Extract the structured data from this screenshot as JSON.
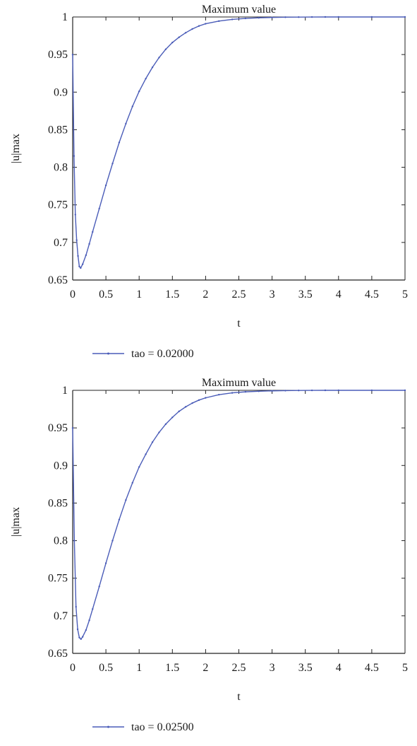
{
  "chart_data": [
    {
      "type": "line",
      "title": "Maximum value",
      "xlabel": "t",
      "ylabel": "|u|max",
      "xlim": [
        0,
        5
      ],
      "ylim": [
        0.65,
        1
      ],
      "xticks": [
        "0",
        "0.5",
        "1",
        "1.5",
        "2",
        "2.5",
        "3",
        "3.5",
        "4",
        "4.5",
        "5"
      ],
      "yticks": [
        "0.65",
        "0.7",
        "0.75",
        "0.8",
        "0.85",
        "0.9",
        "0.95",
        "1"
      ],
      "grid": false,
      "legend_position": "bottom-left",
      "line_color": "#4a5cb8",
      "series": [
        {
          "name": "tao = 0.02000",
          "x": [
            0,
            0.02,
            0.04,
            0.06,
            0.08,
            0.1,
            0.12,
            0.15,
            0.2,
            0.25,
            0.3,
            0.4,
            0.5,
            0.6,
            0.7,
            0.8,
            0.9,
            1.0,
            1.1,
            1.2,
            1.3,
            1.4,
            1.5,
            1.6,
            1.7,
            1.8,
            1.9,
            2.0,
            2.2,
            2.4,
            2.6,
            2.8,
            3.0,
            3.2,
            3.4,
            3.6,
            3.8,
            4.0,
            4.5,
            5.0
          ],
          "y": [
            0.95,
            0.815,
            0.737,
            0.703,
            0.682,
            0.668,
            0.666,
            0.671,
            0.683,
            0.698,
            0.714,
            0.745,
            0.776,
            0.805,
            0.833,
            0.858,
            0.881,
            0.901,
            0.918,
            0.933,
            0.946,
            0.957,
            0.966,
            0.973,
            0.979,
            0.984,
            0.988,
            0.991,
            0.9945,
            0.9968,
            0.9981,
            0.9989,
            0.9994,
            0.9997,
            0.9998,
            0.9999,
            1.0,
            1.0,
            1.0,
            1.0
          ]
        }
      ]
    },
    {
      "type": "line",
      "title": "Maximum value",
      "xlabel": "t",
      "ylabel": "|u|max",
      "xlim": [
        0,
        5
      ],
      "ylim": [
        0.65,
        1
      ],
      "xticks": [
        "0",
        "0.5",
        "1",
        "1.5",
        "2",
        "2.5",
        "3",
        "3.5",
        "4",
        "4.5",
        "5"
      ],
      "yticks": [
        "0.65",
        "0.7",
        "0.75",
        "0.8",
        "0.85",
        "0.9",
        "0.95",
        "1"
      ],
      "grid": false,
      "legend_position": "bottom-left",
      "line_color": "#4a5cb8",
      "series": [
        {
          "name": "tao = 0.02500",
          "x": [
            0,
            0.025,
            0.05,
            0.075,
            0.1,
            0.125,
            0.15,
            0.2,
            0.25,
            0.3,
            0.4,
            0.5,
            0.6,
            0.7,
            0.8,
            0.9,
            1.0,
            1.1,
            1.2,
            1.3,
            1.4,
            1.5,
            1.6,
            1.7,
            1.8,
            1.9,
            2.0,
            2.2,
            2.4,
            2.6,
            2.8,
            3.0,
            3.2,
            3.4,
            3.6,
            3.8,
            4.0,
            4.5,
            5.0
          ],
          "y": [
            0.95,
            0.8,
            0.712,
            0.682,
            0.671,
            0.669,
            0.672,
            0.681,
            0.694,
            0.709,
            0.739,
            0.77,
            0.8,
            0.828,
            0.854,
            0.877,
            0.898,
            0.915,
            0.931,
            0.944,
            0.955,
            0.964,
            0.972,
            0.978,
            0.983,
            0.987,
            0.99,
            0.9942,
            0.9966,
            0.998,
            0.9988,
            0.9993,
            0.9996,
            0.9998,
            0.9999,
            1.0,
            1.0,
            1.0,
            1.0
          ]
        }
      ]
    }
  ]
}
